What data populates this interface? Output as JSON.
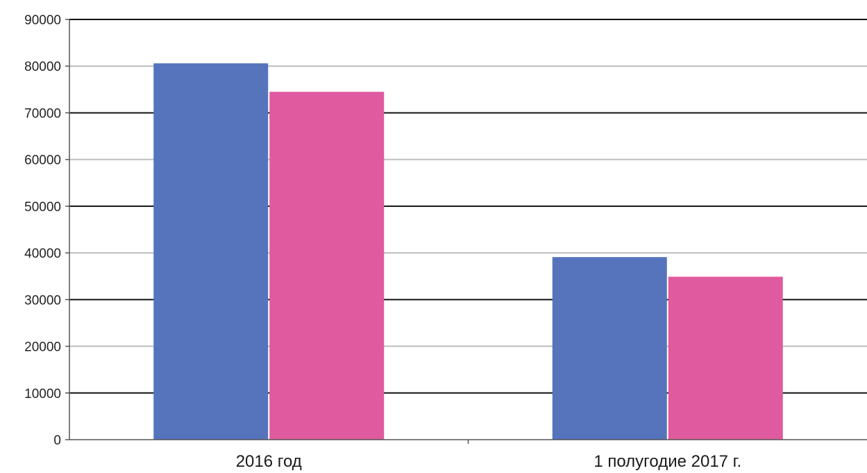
{
  "chart_data": {
    "type": "bar",
    "title": "",
    "xlabel": "",
    "ylabel": "",
    "categories": [
      "2016 год",
      "1 полугодие 2017 г."
    ],
    "series": [
      {
        "color": "#5574bc",
        "values": [
          80600,
          39100
        ]
      },
      {
        "color": "#df5a9f",
        "values": [
          74500,
          34900
        ]
      }
    ],
    "ylim": [
      0,
      90000
    ],
    "yticks": [
      0,
      10000,
      20000,
      30000,
      40000,
      50000,
      60000,
      70000,
      80000,
      90000
    ],
    "ytick_labels": [
      "0",
      "10000",
      "20000",
      "30000",
      "40000",
      "50000",
      "60000",
      "70000",
      "80000",
      "90000"
    ],
    "grid": true,
    "legend": "none"
  }
}
